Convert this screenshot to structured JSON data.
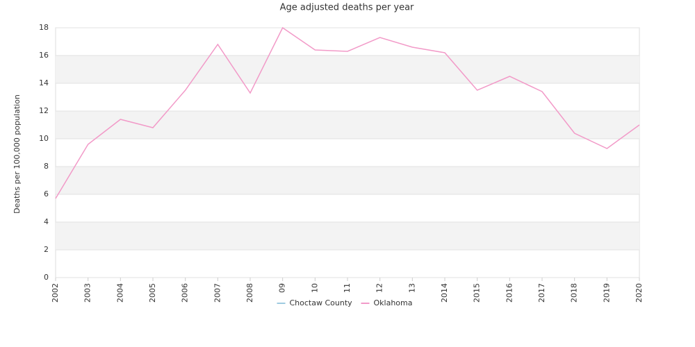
{
  "chart_data": {
    "type": "line",
    "title": "Age adjusted deaths per year",
    "y_label": "Deaths per 100,000 population",
    "categories": [
      "2002",
      "2003",
      "2004",
      "2005",
      "2006",
      "2007",
      "2008",
      "09",
      "10",
      "11",
      "12",
      "13",
      "2014",
      "2015",
      "2016",
      "2017",
      "2018",
      "2019",
      "2020"
    ],
    "series": [
      {
        "name": "Choctaw County",
        "color": "#9ecae1",
        "values": [
          null,
          null,
          null,
          null,
          null,
          null,
          null,
          null,
          null,
          null,
          null,
          null,
          null,
          null,
          null,
          null,
          null,
          null,
          null
        ]
      },
      {
        "name": "Oklahoma",
        "color": "#f29ac8",
        "values": [
          5.7,
          9.6,
          11.4,
          10.8,
          13.5,
          16.8,
          13.3,
          18.0,
          16.4,
          16.3,
          17.3,
          16.6,
          16.2,
          13.5,
          14.5,
          13.4,
          10.4,
          9.3,
          11.0
        ]
      }
    ],
    "ylim": [
      0,
      18
    ],
    "yticks": [
      0,
      2,
      4,
      6,
      8,
      10,
      12,
      14,
      16,
      18
    ],
    "grid": true,
    "legend": "bottom"
  }
}
